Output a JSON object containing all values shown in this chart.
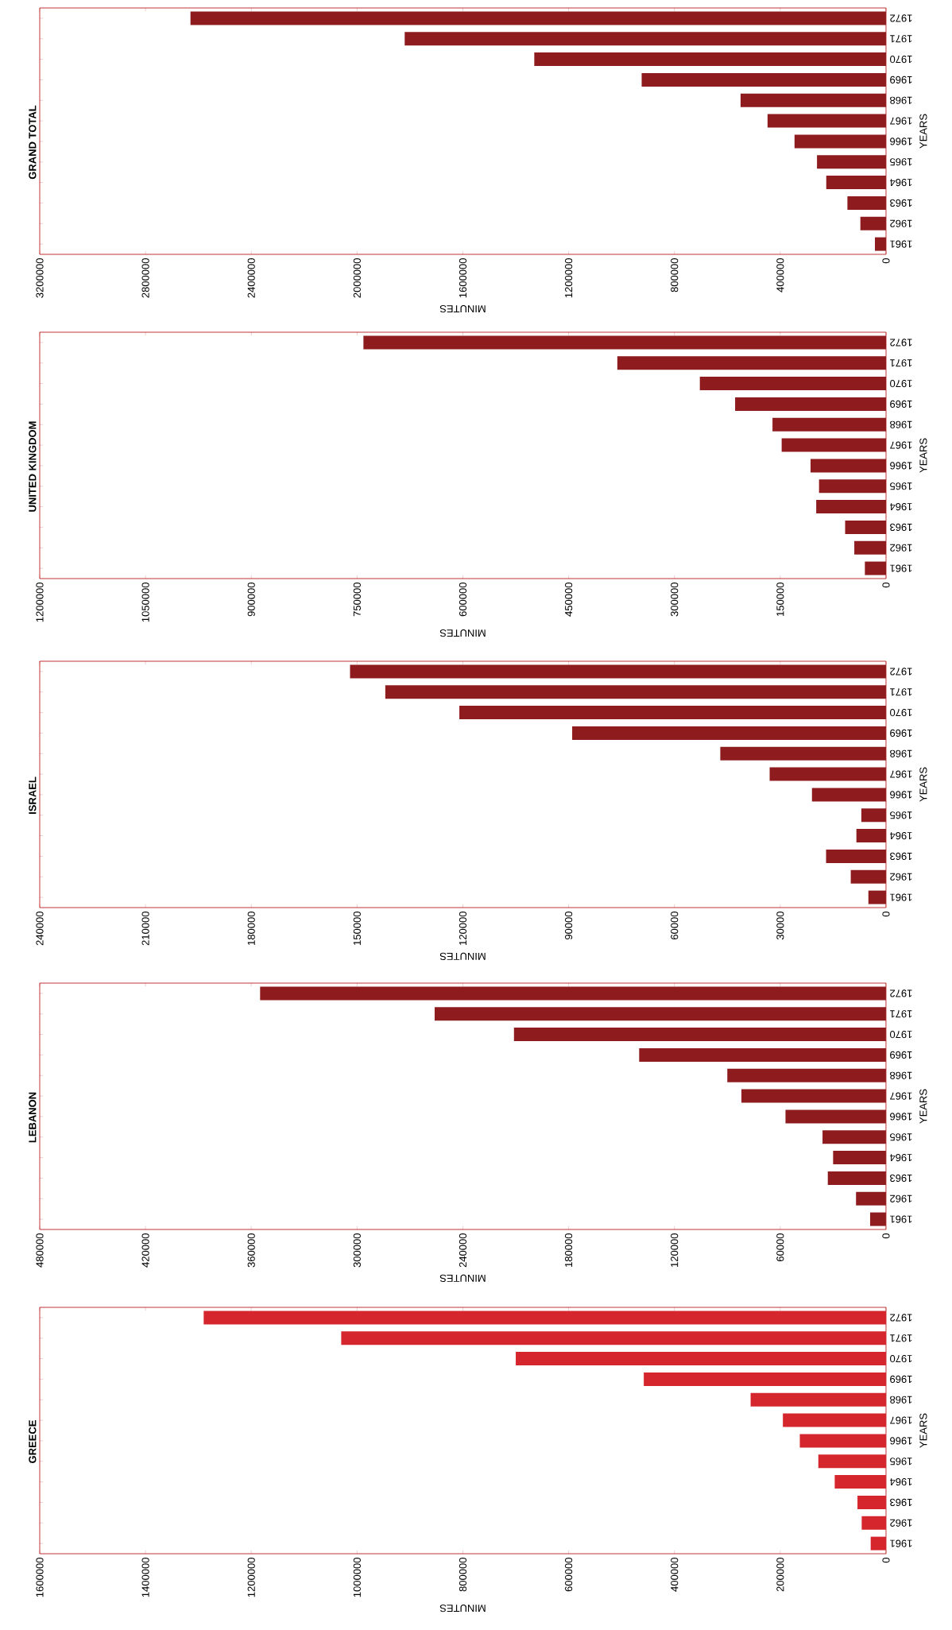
{
  "chart_data": [
    {
      "type": "bar",
      "orientation": "horizontal",
      "title": "GRAND TOTAL",
      "xlabel": "MINUTES",
      "ylabel": "YEARS",
      "categories": [
        "1972",
        "1971",
        "1970",
        "1969",
        "1968",
        "1967",
        "1966",
        "1965",
        "1964",
        "1963",
        "1962",
        "1961"
      ],
      "values": [
        2630000,
        1820000,
        1330000,
        924000,
        550000,
        448000,
        346000,
        261000,
        226000,
        146000,
        97000,
        42000
      ],
      "color": "#8e1c1e",
      "xlim": [
        3200000,
        0
      ],
      "xticks": [
        3200000,
        2800000,
        2400000,
        2000000,
        1600000,
        1200000,
        800000,
        400000,
        0
      ]
    },
    {
      "type": "bar",
      "orientation": "horizontal",
      "title": "UNITED KINGDOM",
      "xlabel": "MINUTES",
      "ylabel": "YEARS",
      "categories": [
        "1972",
        "1971",
        "1970",
        "1969",
        "1968",
        "1967",
        "1966",
        "1965",
        "1964",
        "1963",
        "1962",
        "1961"
      ],
      "values": [
        741000,
        381000,
        264000,
        214000,
        161000,
        148000,
        107000,
        95000,
        99000,
        58000,
        45000,
        30000
      ],
      "color": "#8e1c1e",
      "xlim": [
        1200000,
        0
      ],
      "xticks": [
        1200000,
        1050000,
        900000,
        750000,
        600000,
        450000,
        300000,
        150000,
        0
      ]
    },
    {
      "type": "bar",
      "orientation": "horizontal",
      "title": "ISRAEL",
      "xlabel": "MINUTES",
      "ylabel": "YEARS",
      "categories": [
        "1972",
        "1971",
        "1970",
        "1969",
        "1968",
        "1967",
        "1966",
        "1965",
        "1964",
        "1963",
        "1962",
        "1961"
      ],
      "values": [
        152000,
        142000,
        121000,
        89000,
        47000,
        33000,
        21000,
        7000,
        8400,
        17000,
        10000,
        5000
      ],
      "color": "#8e1c1e",
      "xlim": [
        240000,
        0
      ],
      "xticks": [
        240000,
        210000,
        180000,
        150000,
        120000,
        90000,
        60000,
        30000,
        0
      ]
    },
    {
      "type": "bar",
      "orientation": "horizontal",
      "title": "LEBANON",
      "xlabel": "MINUTES",
      "ylabel": "YEARS",
      "categories": [
        "1972",
        "1971",
        "1970",
        "1969",
        "1968",
        "1967",
        "1966",
        "1965",
        "1964",
        "1963",
        "1962",
        "1961"
      ],
      "values": [
        355000,
        256000,
        211000,
        140000,
        90000,
        82000,
        57000,
        36000,
        30000,
        33000,
        17000,
        9000
      ],
      "color": "#8e1c1e",
      "xlim": [
        480000,
        0
      ],
      "xticks": [
        480000,
        420000,
        360000,
        300000,
        240000,
        180000,
        120000,
        60000,
        0
      ]
    },
    {
      "type": "bar",
      "orientation": "horizontal",
      "title": "GREECE",
      "xlabel": "MINUTES",
      "ylabel": "YEARS",
      "categories": [
        "1972",
        "1971",
        "1970",
        "1969",
        "1968",
        "1967",
        "1966",
        "1965",
        "1964",
        "1963",
        "1962",
        "1961"
      ],
      "values": [
        1290000,
        1030000,
        700000,
        458000,
        256000,
        195000,
        163000,
        128000,
        97000,
        54000,
        46000,
        29000
      ],
      "color": "#d4262c",
      "xlim": [
        1600000,
        0
      ],
      "xticks": [
        1600000,
        1400000,
        1200000,
        1000000,
        800000,
        600000,
        400000,
        200000,
        0
      ]
    }
  ]
}
